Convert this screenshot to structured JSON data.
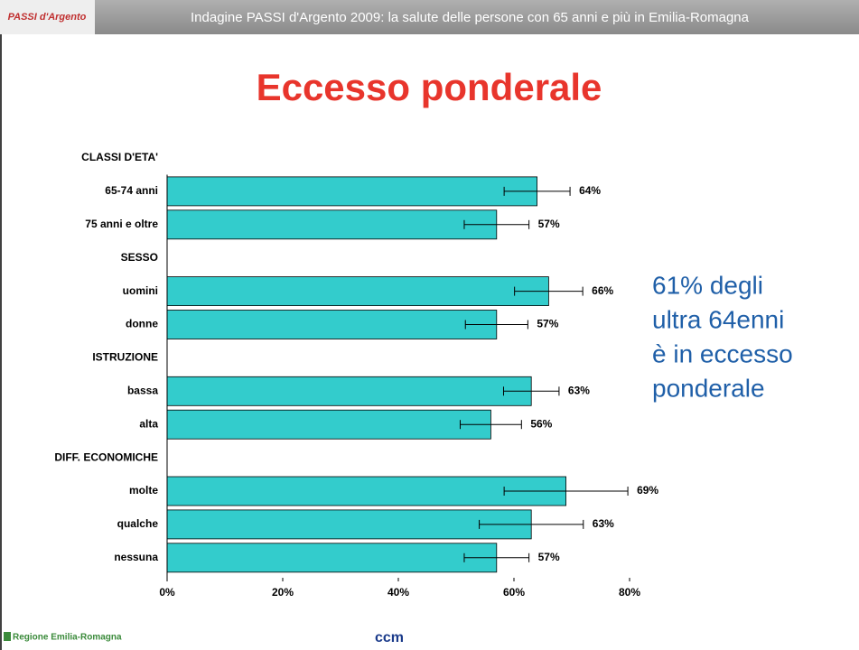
{
  "header": {
    "title": "Indagine PASSI d'Argento 2009: la salute delle persone con 65 anni e più in Emilia-Romagna",
    "logo": "PASSI d'Argento"
  },
  "chart_data": {
    "type": "bar",
    "orientation": "horizontal",
    "title": "Eccesso ponderale",
    "categories": [
      "CLASSI D'ETA'",
      "65-74 anni",
      "75 anni e oltre",
      "SESSO",
      "uomini",
      "donne",
      "ISTRUZIONE",
      "bassa",
      "alta",
      "DIFF. ECONOMICHE",
      "molte",
      "qualche",
      "nessuna"
    ],
    "values": [
      null,
      64,
      57,
      null,
      66,
      57,
      null,
      63,
      56,
      null,
      69,
      63,
      57
    ],
    "value_labels": [
      null,
      "64%",
      "57%",
      null,
      "66%",
      "57%",
      null,
      "63%",
      "56%",
      null,
      "69%",
      "63%",
      "57%"
    ],
    "errors": [
      null,
      5.7,
      5.6,
      null,
      5.9,
      5.4,
      null,
      4.8,
      5.3,
      null,
      10.7,
      9,
      5.6
    ],
    "color": "#33cccc",
    "xlim": [
      0,
      80
    ],
    "xticks": [
      {
        "value": 0,
        "label": "0%"
      },
      {
        "value": 20,
        "label": "20%"
      },
      {
        "value": 40,
        "label": "40%"
      },
      {
        "value": 60,
        "label": "60%"
      },
      {
        "value": 80,
        "label": "80%"
      }
    ],
    "grid": false
  },
  "annotation": {
    "lines": [
      "61% degli",
      "ultra 64enni",
      "è in eccesso",
      "ponderale"
    ]
  },
  "footer": {
    "left_logo": "Regione Emilia-Romagna",
    "center_logo": "ccm"
  }
}
